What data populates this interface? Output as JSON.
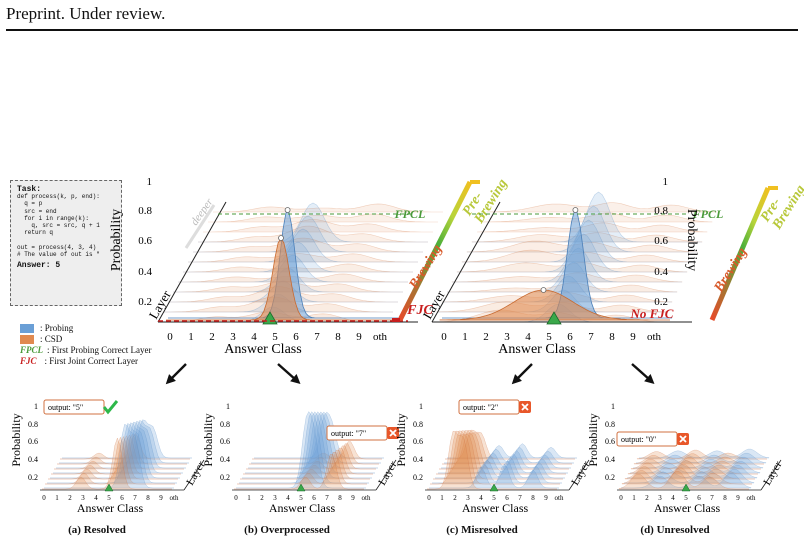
{
  "header": "Preprint. Under review.",
  "task": {
    "title": "Task:",
    "code": "def process(k, p, end):\n  q = p\n  src = end\n  for i in range(k):\n    q, src = src, q + 1\n  return q\n\nout = process(4, 3, 4)\n# The value of out is \"",
    "answer_label": "Answer:",
    "answer_value": "5"
  },
  "legend": {
    "probing": ": Probing",
    "csd": ": CSD",
    "fpcl_abbr": "FPCL",
    "fpcl_text": ": First Probing Correct Layer",
    "fjc_abbr": "FJC",
    "fjc_text": ": First Joint Correct Layer"
  },
  "colors": {
    "probing": "#6a9fd6",
    "csd": "#e08a50",
    "fpcl": "#4a9a3a",
    "fjc": "#c81e1e"
  },
  "big_left": {
    "ylabel": "Probability",
    "xlabel": "Answer Class",
    "layer_label": "Layer",
    "deeper_label": "deeper",
    "yticks": [
      "0.2",
      "0.4",
      "0.6",
      "0.8",
      "1"
    ],
    "xticks": [
      "0",
      "1",
      "2",
      "3",
      "4",
      "5",
      "6",
      "7",
      "8",
      "9",
      "oth"
    ],
    "fpcl_label": "FPCL",
    "fjc_label": "FJC",
    "brewing_label": "Brewing",
    "prebrewing_label": "Pre-\nBrewing"
  },
  "big_right": {
    "ylabel": "Probability",
    "xlabel": "Answer Class",
    "layer_label": "Layer",
    "yticks": [
      "0.2",
      "0.4",
      "0.6",
      "0.8",
      "1"
    ],
    "xticks": [
      "0",
      "1",
      "2",
      "3",
      "4",
      "5",
      "6",
      "7",
      "8",
      "9",
      "oth"
    ],
    "fpcl_label": "FPCL",
    "nofjc_label": "No FJC",
    "brewing_label": "Brewing",
    "prebrewing_label": "Pre-\nBrewing"
  },
  "panels": [
    {
      "caption": "(a) Resolved",
      "output": "output: \"5\"",
      "bold_digit": "5",
      "correct": true,
      "xlabel": "Answer Class",
      "ylabel": "Probability",
      "layer": "Layer",
      "yticks": [
        "0.2",
        "0.4",
        "0.6",
        "0.8",
        "1"
      ],
      "xticks": [
        "0",
        "1",
        "2",
        "3",
        "4",
        "5",
        "6",
        "7",
        "8",
        "9",
        "oth"
      ]
    },
    {
      "caption": "(b) Overprocessed",
      "output": "output: \"7\"",
      "correct": false,
      "xlabel": "Answer Class",
      "ylabel": "Probability",
      "layer": "Layer",
      "yticks": [
        "0.2",
        "0.4",
        "0.6",
        "0.8",
        "1"
      ],
      "xticks": [
        "0",
        "1",
        "2",
        "3",
        "4",
        "5",
        "6",
        "7",
        "8",
        "9",
        "oth"
      ]
    },
    {
      "caption": "(c) Misresolved",
      "output": "output: \"2\"",
      "correct": false,
      "xlabel": "Answer Class",
      "ylabel": "Probability",
      "layer": "Layer",
      "yticks": [
        "0.2",
        "0.4",
        "0.6",
        "0.8",
        "1"
      ],
      "xticks": [
        "0",
        "1",
        "2",
        "3",
        "4",
        "5",
        "6",
        "7",
        "8",
        "9",
        "oth"
      ]
    },
    {
      "caption": "(d) Unresolved",
      "output": "output: \"0\"",
      "correct": false,
      "xlabel": "Answer Class",
      "ylabel": "Probability",
      "layer": "Layer",
      "yticks": [
        "0.2",
        "0.4",
        "0.6",
        "0.8",
        "1"
      ],
      "xticks": [
        "0",
        "1",
        "2",
        "3",
        "4",
        "5",
        "6",
        "7",
        "8",
        "9",
        "oth"
      ]
    }
  ]
}
